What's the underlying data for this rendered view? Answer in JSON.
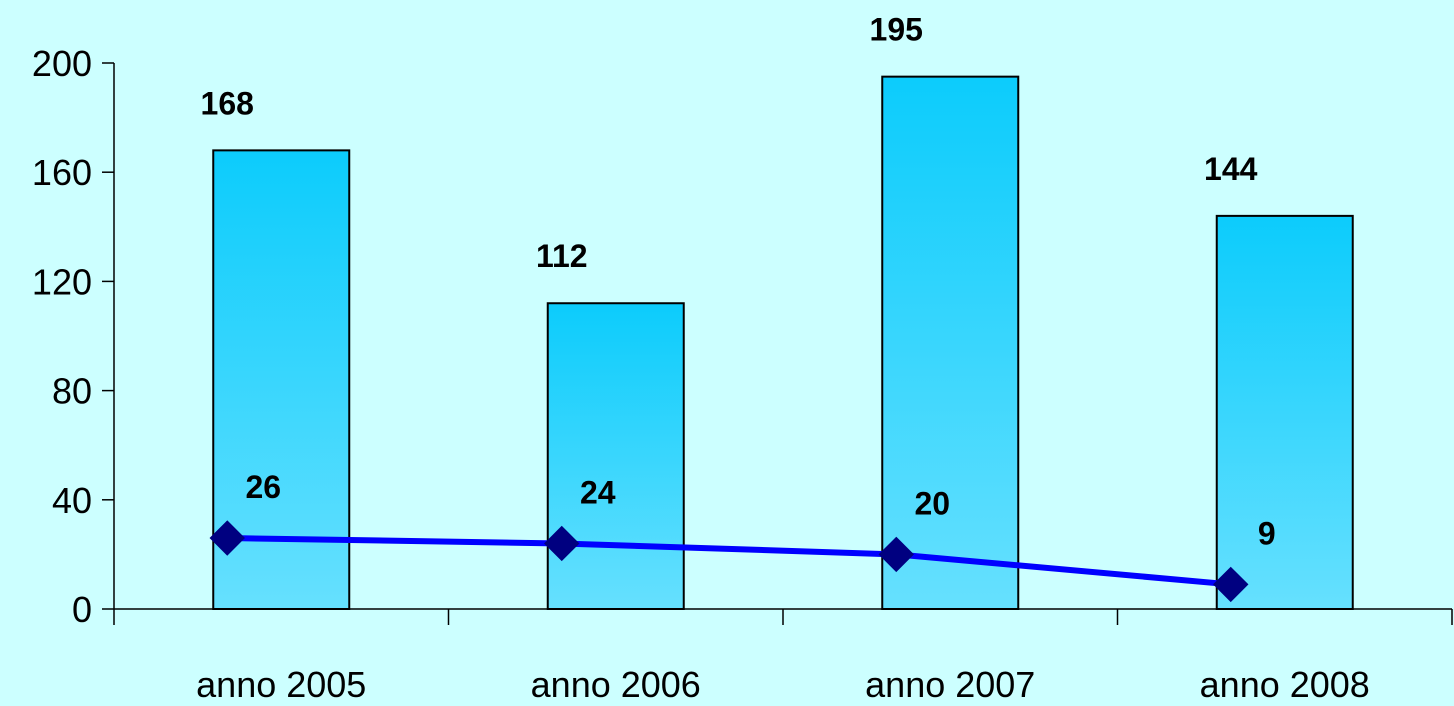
{
  "chart_data": {
    "type": "bar",
    "categories": [
      "anno 2005",
      "anno 2006",
      "anno 2007",
      "anno 2008"
    ],
    "series": [
      {
        "type": "bar",
        "values": [
          168,
          112,
          195,
          144
        ],
        "color": "#12ccff"
      },
      {
        "type": "line",
        "values": [
          26,
          24,
          20,
          9
        ],
        "color": "#0000ff",
        "marker_color": "#000080",
        "marker": "diamond"
      }
    ],
    "y_ticks": [
      0,
      40,
      80,
      120,
      160,
      200
    ],
    "ylim": [
      0,
      200
    ],
    "title": "",
    "xlabel": "",
    "ylabel": "",
    "grid": false,
    "legend": "none"
  }
}
